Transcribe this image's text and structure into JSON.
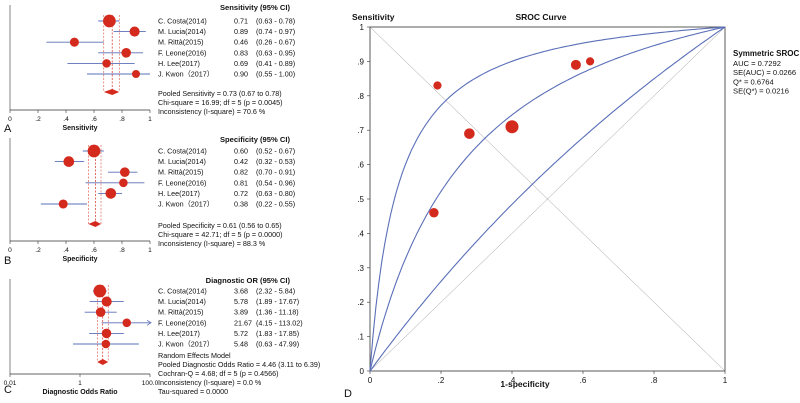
{
  "chart_data": [
    {
      "type": "forest",
      "panel_letter": "A",
      "title": "Sensitivity (95% CI)",
      "xlabel": "Sensitivity",
      "xlim": [
        0,
        1
      ],
      "xticks": [
        "0",
        ".2",
        ".4",
        ".6",
        ".8",
        "1"
      ],
      "studies": [
        {
          "name": "C. Costa(2014)",
          "value": "0.71",
          "ci": "(0.63 - 0.78)",
          "est": 0.71,
          "lo": 0.63,
          "hi": 0.78,
          "weight": 1.6
        },
        {
          "name": "M. Lucia(2014)",
          "value": "0.89",
          "ci": "(0.74 - 0.97)",
          "est": 0.89,
          "lo": 0.74,
          "hi": 0.97,
          "weight": 1.1
        },
        {
          "name": "M. Rittà(2015)",
          "value": "0.46",
          "ci": "(0.26 - 0.67)",
          "est": 0.46,
          "lo": 0.26,
          "hi": 0.67,
          "weight": 0.9
        },
        {
          "name": "F. Leone(2016)",
          "value": "0.83",
          "ci": "(0.63 - 0.95)",
          "est": 0.83,
          "lo": 0.63,
          "hi": 0.95,
          "weight": 1.0
        },
        {
          "name": "H. Lee(2017)",
          "value": "0.69",
          "ci": "(0.41 - 0.89)",
          "est": 0.69,
          "lo": 0.41,
          "hi": 0.89,
          "weight": 0.8
        },
        {
          "name": "J. Kwon（2017）",
          "value": "0.90",
          "ci": "(0.55 - 1.00)",
          "est": 0.9,
          "lo": 0.55,
          "hi": 1.0,
          "weight": 0.7
        }
      ],
      "pooled": {
        "est": 0.73,
        "lo": 0.67,
        "hi": 0.78
      },
      "stats": [
        "Pooled Sensitivity = 0.73 (0.67 to 0.78)",
        "Chi-square = 16.99; df = 5 (p = 0.0045)",
        "Inconsistency (I-square) = 70.6 %"
      ]
    },
    {
      "type": "forest",
      "panel_letter": "B",
      "title": "Specificity (95% CI)",
      "xlabel": "Specificity",
      "xlim": [
        0,
        1
      ],
      "xticks": [
        "0",
        ".2",
        ".4",
        ".6",
        ".8",
        "1"
      ],
      "studies": [
        {
          "name": "C. Costa(2014)",
          "value": "0.60",
          "ci": "(0.52 - 0.67)",
          "est": 0.6,
          "lo": 0.52,
          "hi": 0.67,
          "weight": 1.6
        },
        {
          "name": "M. Lucia(2014)",
          "value": "0.42",
          "ci": "(0.32 - 0.53)",
          "est": 0.42,
          "lo": 0.32,
          "hi": 0.53,
          "weight": 1.2
        },
        {
          "name": "M. Rittà(2015)",
          "value": "0.82",
          "ci": "(0.70 - 0.91)",
          "est": 0.82,
          "lo": 0.7,
          "hi": 0.91,
          "weight": 1.0
        },
        {
          "name": "F. Leone(2016)",
          "value": "0.81",
          "ci": "(0.54 - 0.96)",
          "est": 0.81,
          "lo": 0.54,
          "hi": 0.96,
          "weight": 0.8
        },
        {
          "name": "H. Lee(2017)",
          "value": "0.72",
          "ci": "(0.63 - 0.80)",
          "est": 0.72,
          "lo": 0.63,
          "hi": 0.8,
          "weight": 1.2
        },
        {
          "name": "J. Kwon（2017）",
          "value": "0.38",
          "ci": "(0.22 - 0.55)",
          "est": 0.38,
          "lo": 0.22,
          "hi": 0.55,
          "weight": 0.9
        }
      ],
      "pooled": {
        "est": 0.61,
        "lo": 0.56,
        "hi": 0.65
      },
      "stats": [
        "Pooled Specificity = 0.61 (0.56 to 0.65)",
        "Chi-square = 42.71; df = 5 (p = 0.0000)",
        "Inconsistency (I-square) = 88.3 %"
      ]
    },
    {
      "type": "forest",
      "panel_letter": "C",
      "title": "Diagnostic OR (95% CI)",
      "xlabel": "Diagnostic Odds Ratio",
      "scale": "log",
      "xlim": [
        0.01,
        100
      ],
      "xticks": [
        "0.01",
        "1",
        "100.0"
      ],
      "studies": [
        {
          "name": "C. Costa(2014)",
          "value": "3.68",
          "ci": "(2.32 - 5.84)",
          "est": 3.68,
          "lo": 2.32,
          "hi": 5.84,
          "weight": 1.6
        },
        {
          "name": "M. Lucia(2014)",
          "value": "5.78",
          "ci": "(1.89 - 17.67)",
          "est": 5.78,
          "lo": 1.89,
          "hi": 17.67,
          "weight": 1.1
        },
        {
          "name": "M. Rittà(2015)",
          "value": "3.89",
          "ci": "(1.36 - 11.18)",
          "est": 3.89,
          "lo": 1.36,
          "hi": 11.18,
          "weight": 1.0
        },
        {
          "name": "F. Leone(2016)",
          "value": "21.67",
          "ci": "(4.15 - 113.02)",
          "est": 21.67,
          "lo": 4.15,
          "hi": 113.02,
          "weight": 0.8
        },
        {
          "name": "H. Lee(2017)",
          "value": "5.72",
          "ci": "(1.83 - 17.85)",
          "est": 5.72,
          "lo": 1.83,
          "hi": 17.85,
          "weight": 1.0
        },
        {
          "name": "J. Kwon（2017）",
          "value": "5.48",
          "ci": "(0.63 - 47.99)",
          "est": 5.48,
          "lo": 0.63,
          "hi": 47.99,
          "weight": 0.8
        }
      ],
      "pooled": {
        "est": 4.46,
        "lo": 3.11,
        "hi": 6.39
      },
      "stats": [
        "Random Effects Model",
        "Pooled Diagnostic Odds Ratio = 4.46 (3.11 to 6.39)",
        "Cochran-Q = 4.68; df = 5 (p = 0.4566)",
        "Inconsistency (I-square) = 0.0 %",
        "Tau-squared = 0.0000"
      ]
    },
    {
      "type": "sroc",
      "panel_letter": "D",
      "title": "SROC Curve",
      "ylabel": "Sensitivity",
      "xlabel": "1-specificity",
      "xlim": [
        0,
        1
      ],
      "ylim": [
        0,
        1
      ],
      "xticks": [
        "0",
        ".2",
        ".4",
        ".6",
        ".8",
        "1"
      ],
      "yticks": [
        "0",
        ".1",
        ".2",
        ".3",
        ".4",
        ".5",
        ".6",
        ".7",
        ".8",
        ".9",
        "1"
      ],
      "points": [
        {
          "x": 0.18,
          "y": 0.46,
          "size": 0.9
        },
        {
          "x": 0.19,
          "y": 0.83,
          "size": 0.7
        },
        {
          "x": 0.28,
          "y": 0.69,
          "size": 1.1
        },
        {
          "x": 0.4,
          "y": 0.71,
          "size": 1.5
        },
        {
          "x": 0.58,
          "y": 0.89,
          "size": 1.0
        },
        {
          "x": 0.62,
          "y": 0.9,
          "size": 0.7
        }
      ],
      "auc": 0.7292,
      "q_star": 0.6764,
      "legend_title": "Symmetric SROC",
      "legend_lines": [
        "AUC = 0.7292",
        "SE(AUC) = 0.0266",
        "Q* = 0.6764",
        "SE(Q*) = 0.0216"
      ]
    }
  ],
  "colors": {
    "marker": "#d42a1e",
    "curve": "#5a6fb8",
    "ci_line": "#5a6fb8",
    "pooled": "#d42a1e",
    "text": "#111111",
    "axis": "#333333"
  }
}
